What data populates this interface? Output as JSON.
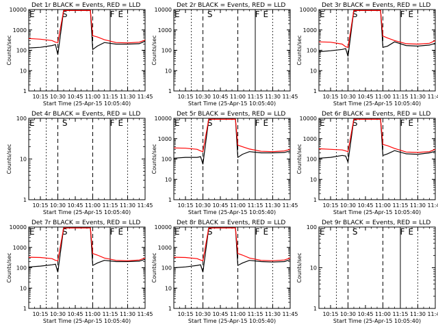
{
  "chart_data": [
    {
      "type": "line",
      "title": "Det 1r BLACK = Events, RED = LLD",
      "xlabel": "Start Time (25-Apr-15 10:05:40)",
      "ylabel": "Counts/sec",
      "ylog": true,
      "ylim": [
        1,
        10000
      ],
      "x_ticks": [
        "10:15",
        "10:30",
        "10:45",
        "11:00",
        "11:15",
        "11:30",
        "11:45"
      ],
      "y_ticks": [
        "1",
        "10",
        "100",
        "1000",
        "10000"
      ],
      "x": [
        "10:05",
        "10:15",
        "10:25",
        "10:28",
        "10:30",
        "10:35",
        "10:45",
        "10:58",
        "11:00",
        "11:04",
        "11:10",
        "11:20",
        "11:30",
        "11:40",
        "11:45"
      ],
      "series": [
        {
          "color": "#000000",
          "values": [
            130,
            140,
            170,
            190,
            60,
            9000,
            9000,
            9000,
            110,
            160,
            240,
            200,
            200,
            210,
            280
          ]
        },
        {
          "color": "#ff0000",
          "values": [
            380,
            350,
            300,
            250,
            240,
            9000,
            9000,
            9000,
            520,
            450,
            330,
            240,
            230,
            250,
            320
          ]
        }
      ],
      "markers": [
        {
          "label": "E",
          "x": "10:05"
        },
        {
          "label": "S",
          "x": "10:32"
        },
        {
          "label": "F",
          "x": "11:13"
        },
        {
          "label": "E",
          "x": "11:20"
        }
      ]
    },
    {
      "type": "line",
      "title": "Det 2r BLACK = Events, RED = LLD",
      "xlabel": "Start Time (25-Apr-15 10:05:40)",
      "ylabel": "Counts/sec",
      "ylog": true,
      "ylim": [
        1,
        10000
      ],
      "x_ticks": [
        "10:15",
        "10:30",
        "10:45",
        "11:00",
        "11:15",
        "11:30",
        "11:45"
      ],
      "y_ticks": [
        "1",
        "10",
        "100",
        "1000",
        "10000"
      ],
      "x": [],
      "series": [],
      "markers": [
        {
          "label": "E",
          "x": "10:05"
        },
        {
          "label": "S",
          "x": "10:32"
        },
        {
          "label": "F",
          "x": "11:13"
        },
        {
          "label": "E",
          "x": "11:20"
        }
      ]
    },
    {
      "type": "line",
      "title": "Det 3r BLACK = Events, RED = LLD",
      "xlabel": "Start Time (25-Apr-15 10:05:40)",
      "ylabel": "Counts/sec",
      "ylog": true,
      "ylim": [
        1,
        10000
      ],
      "x_ticks": [
        "10:15",
        "10:30",
        "10:45",
        "11:00",
        "11:15",
        "11:30",
        "11:45"
      ],
      "y_ticks": [
        "1",
        "10",
        "100",
        "1000",
        "10000"
      ],
      "x": [
        "10:05",
        "10:15",
        "10:25",
        "10:28",
        "10:30",
        "10:35",
        "10:45",
        "10:58",
        "11:00",
        "11:04",
        "11:10",
        "11:20",
        "11:30",
        "11:40",
        "11:45"
      ],
      "series": [
        {
          "color": "#000000",
          "values": [
            85,
            95,
            110,
            120,
            50,
            9000,
            9000,
            9000,
            140,
            160,
            260,
            170,
            160,
            180,
            220
          ]
        },
        {
          "color": "#ff0000",
          "values": [
            260,
            250,
            200,
            150,
            140,
            9000,
            9000,
            9000,
            500,
            400,
            300,
            210,
            200,
            220,
            300
          ]
        }
      ],
      "markers": [
        {
          "label": "E",
          "x": "10:05"
        },
        {
          "label": "S",
          "x": "10:32"
        },
        {
          "label": "F",
          "x": "11:13"
        },
        {
          "label": "E",
          "x": "11:20"
        }
      ]
    },
    {
      "type": "line",
      "title": "Det 4r BLACK = Events, RED = LLD",
      "xlabel": "Start Time (25-Apr-15 10:05:40)",
      "ylabel": "Counts/sec",
      "ylog": true,
      "ylim": [
        1,
        100
      ],
      "x_ticks": [
        "10:15",
        "10:30",
        "10:45",
        "11:00",
        "11:15",
        "11:30",
        "11:45"
      ],
      "y_ticks": [
        "1",
        "10",
        "100"
      ],
      "x": [],
      "series": [],
      "markers": [
        {
          "label": "E",
          "x": "10:05"
        },
        {
          "label": "S",
          "x": "10:32"
        },
        {
          "label": "F",
          "x": "11:13"
        },
        {
          "label": "E",
          "x": "11:20"
        }
      ]
    },
    {
      "type": "line",
      "title": "Det 5r BLACK = Events, RED = LLD",
      "xlabel": "Start Time (25-Apr-15 10:05:40)",
      "ylabel": "Counts/sec",
      "ylog": true,
      "ylim": [
        1,
        10000
      ],
      "x_ticks": [
        "10:15",
        "10:30",
        "10:45",
        "11:00",
        "11:15",
        "11:30",
        "11:45"
      ],
      "y_ticks": [
        "1",
        "10",
        "100",
        "1000",
        "10000"
      ],
      "x": [
        "10:05",
        "10:15",
        "10:25",
        "10:28",
        "10:30",
        "10:35",
        "10:45",
        "10:58",
        "11:00",
        "11:04",
        "11:10",
        "11:20",
        "11:30",
        "11:40",
        "11:45"
      ],
      "series": [
        {
          "color": "#000000",
          "values": [
            110,
            120,
            120,
            130,
            55,
            9000,
            9000,
            9000,
            120,
            170,
            230,
            200,
            200,
            210,
            250
          ]
        },
        {
          "color": "#ff0000",
          "values": [
            350,
            340,
            300,
            250,
            230,
            9000,
            9000,
            9000,
            480,
            400,
            310,
            240,
            230,
            250,
            300
          ]
        }
      ],
      "markers": [
        {
          "label": "E",
          "x": "10:05"
        },
        {
          "label": "S",
          "x": "10:32"
        },
        {
          "label": "F",
          "x": "11:13"
        },
        {
          "label": "E",
          "x": "11:20"
        }
      ]
    },
    {
      "type": "line",
      "title": "Det 6r BLACK = Events, RED = LLD",
      "xlabel": "Start Time (25-Apr-15 10:05:40)",
      "ylabel": "Counts/sec",
      "ylog": true,
      "ylim": [
        1,
        10000
      ],
      "x_ticks": [
        "10:15",
        "10:30",
        "10:45",
        "11:00",
        "11:15",
        "11:30",
        "11:45"
      ],
      "y_ticks": [
        "1",
        "10",
        "100",
        "1000",
        "10000"
      ],
      "x": [
        "10:05",
        "10:15",
        "10:25",
        "10:28",
        "10:30",
        "10:35",
        "10:45",
        "10:58",
        "11:00",
        "11:04",
        "11:10",
        "11:20",
        "11:30",
        "11:40",
        "11:45"
      ],
      "series": [
        {
          "color": "#000000",
          "values": [
            110,
            120,
            150,
            140,
            70,
            9000,
            9000,
            9000,
            150,
            180,
            260,
            180,
            170,
            200,
            240
          ]
        },
        {
          "color": "#ff0000",
          "values": [
            320,
            300,
            280,
            250,
            230,
            9000,
            9000,
            9000,
            520,
            450,
            330,
            220,
            210,
            230,
            300
          ]
        }
      ],
      "markers": [
        {
          "label": "E",
          "x": "10:05"
        },
        {
          "label": "S",
          "x": "10:32"
        },
        {
          "label": "F",
          "x": "11:13"
        },
        {
          "label": "E",
          "x": "11:20"
        }
      ]
    },
    {
      "type": "line",
      "title": "Det 7r BLACK = Events, RED = LLD",
      "xlabel": "Start Time (25-Apr-15 10:05:40)",
      "ylabel": "Counts/sec",
      "ylog": true,
      "ylim": [
        1,
        10000
      ],
      "x_ticks": [
        "10:15",
        "10:30",
        "10:45",
        "11:00",
        "11:15",
        "11:30",
        "11:45"
      ],
      "y_ticks": [
        "1",
        "10",
        "100",
        "1000",
        "10000"
      ],
      "x": [
        "10:05",
        "10:15",
        "10:25",
        "10:28",
        "10:30",
        "10:35",
        "10:45",
        "10:58",
        "11:00",
        "11:04",
        "11:10",
        "11:20",
        "11:30",
        "11:40",
        "11:45"
      ],
      "series": [
        {
          "color": "#000000",
          "values": [
            110,
            120,
            140,
            150,
            60,
            9000,
            9000,
            9000,
            130,
            170,
            230,
            200,
            200,
            210,
            260
          ]
        },
        {
          "color": "#ff0000",
          "values": [
            330,
            320,
            280,
            230,
            220,
            9000,
            9000,
            9000,
            500,
            420,
            300,
            230,
            220,
            240,
            300
          ]
        }
      ],
      "markers": [
        {
          "label": "E",
          "x": "10:05"
        },
        {
          "label": "S",
          "x": "10:32"
        },
        {
          "label": "F",
          "x": "11:13"
        },
        {
          "label": "E",
          "x": "11:20"
        }
      ]
    },
    {
      "type": "line",
      "title": "Det 8r BLACK = Events, RED = LLD",
      "xlabel": "Start Time (25-Apr-15 10:05:40)",
      "ylabel": "Counts/sec",
      "ylog": true,
      "ylim": [
        1,
        10000
      ],
      "x_ticks": [
        "10:15",
        "10:30",
        "10:45",
        "11:00",
        "11:15",
        "11:30",
        "11:45"
      ],
      "y_ticks": [
        "1",
        "10",
        "100",
        "1000",
        "10000"
      ],
      "x": [
        "10:05",
        "10:15",
        "10:25",
        "10:28",
        "10:30",
        "10:35",
        "10:45",
        "10:58",
        "11:00",
        "11:04",
        "11:10",
        "11:20",
        "11:30",
        "11:40",
        "11:45"
      ],
      "series": [
        {
          "color": "#000000",
          "values": [
            100,
            110,
            130,
            140,
            60,
            9000,
            9000,
            9000,
            130,
            170,
            230,
            200,
            190,
            200,
            250
          ]
        },
        {
          "color": "#ff0000",
          "values": [
            330,
            320,
            280,
            240,
            220,
            9000,
            9000,
            9000,
            500,
            420,
            300,
            230,
            220,
            240,
            300
          ]
        }
      ],
      "markers": [
        {
          "label": "E",
          "x": "10:05"
        },
        {
          "label": "S",
          "x": "10:32"
        },
        {
          "label": "F",
          "x": "11:13"
        },
        {
          "label": "E",
          "x": "11:20"
        }
      ]
    },
    {
      "type": "line",
      "title": "Det 9r BLACK = Events, RED = LLD",
      "xlabel": "Start Time (25-Apr-15 10:05:40)",
      "ylabel": "Counts/sec",
      "ylog": true,
      "ylim": [
        1,
        100
      ],
      "x_ticks": [
        "10:15",
        "10:30",
        "10:45",
        "11:00",
        "11:15",
        "11:30",
        "11:45"
      ],
      "y_ticks": [
        "1",
        "10",
        "100"
      ],
      "x": [],
      "series": [],
      "markers": [
        {
          "label": "E",
          "x": "10:05"
        },
        {
          "label": "S",
          "x": "10:32"
        },
        {
          "label": "F",
          "x": "11:13"
        },
        {
          "label": "E",
          "x": "11:20"
        }
      ]
    }
  ]
}
